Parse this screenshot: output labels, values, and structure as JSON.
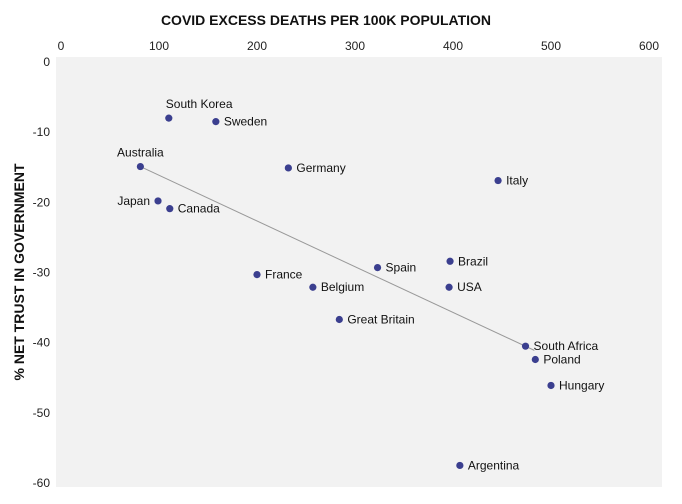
{
  "chart_data": {
    "type": "scatter",
    "xlabel": "COVID EXCESS DEATHS PER 100K POPULATION",
    "ylabel": "% NET TRUST IN GOVERNMENT",
    "xlim": [
      0,
      600
    ],
    "ylim": [
      -60,
      0
    ],
    "xticks": [
      0,
      100,
      200,
      300,
      400,
      500,
      600
    ],
    "yticks": [
      0,
      -10,
      -20,
      -30,
      -40,
      -50,
      -60
    ],
    "x_axis_position": "top",
    "grid": false,
    "colors": {
      "point": "#3b3f8f",
      "trend": "#999999",
      "background": "#f2f2f2"
    },
    "points": [
      {
        "label": "South Korea",
        "x": 110,
        "y": -8.0,
        "label_pos": "above"
      },
      {
        "label": "Sweden",
        "x": 158,
        "y": -8.5,
        "label_pos": "right"
      },
      {
        "label": "Australia",
        "x": 81,
        "y": -14.9,
        "label_pos": "above"
      },
      {
        "label": "Germany",
        "x": 232,
        "y": -15.1,
        "label_pos": "right"
      },
      {
        "label": "Italy",
        "x": 446,
        "y": -16.9,
        "label_pos": "right"
      },
      {
        "label": "Japan",
        "x": 99,
        "y": -19.8,
        "label_pos": "left"
      },
      {
        "label": "Canada",
        "x": 111,
        "y": -20.9,
        "label_pos": "right"
      },
      {
        "label": "Brazil",
        "x": 397,
        "y": -28.4,
        "label_pos": "right"
      },
      {
        "label": "Spain",
        "x": 323,
        "y": -29.3,
        "label_pos": "right"
      },
      {
        "label": "France",
        "x": 200,
        "y": -30.3,
        "label_pos": "right"
      },
      {
        "label": "Belgium",
        "x": 257,
        "y": -32.1,
        "label_pos": "right"
      },
      {
        "label": "USA",
        "x": 396,
        "y": -32.1,
        "label_pos": "right"
      },
      {
        "label": "Great Britain",
        "x": 284,
        "y": -36.7,
        "label_pos": "right"
      },
      {
        "label": "South Africa",
        "x": 474,
        "y": -40.5,
        "label_pos": "right"
      },
      {
        "label": "Poland",
        "x": 484,
        "y": -42.4,
        "label_pos": "right"
      },
      {
        "label": "Hungary",
        "x": 500,
        "y": -46.1,
        "label_pos": "right"
      },
      {
        "label": "Argentina",
        "x": 407,
        "y": -57.5,
        "label_pos": "right"
      }
    ],
    "trendline": {
      "x": [
        81,
        483
      ],
      "y": [
        -14.9,
        -41.1
      ]
    }
  }
}
